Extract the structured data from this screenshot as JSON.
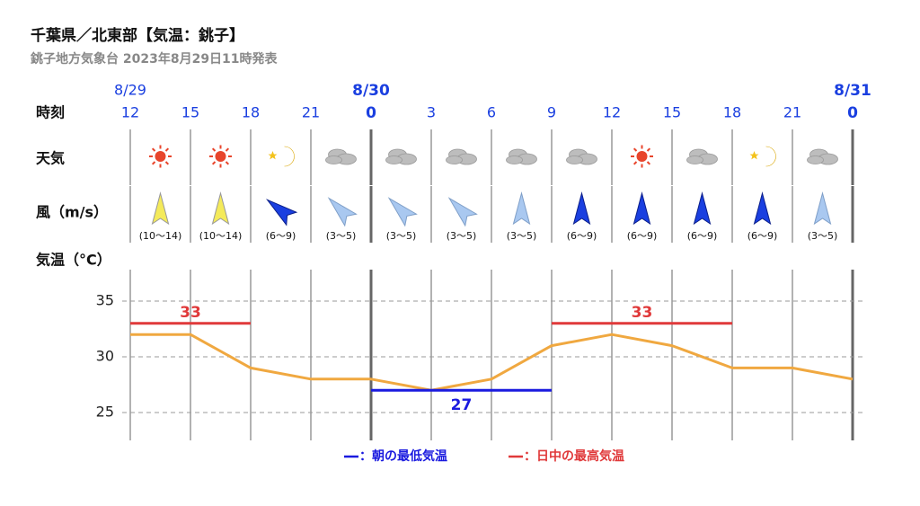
{
  "header": {
    "title": "千葉県／北東部【気温：銚子】",
    "subtitle": "銚子地方気象台 2023年8月29日11時発表"
  },
  "rows": {
    "time": "時刻",
    "weather": "天気",
    "wind": "風（m/s）",
    "temp": "気温（°C）"
  },
  "dates": [
    "8/29",
    null,
    null,
    null,
    "8/30",
    null,
    null,
    null,
    null,
    null,
    null,
    null,
    "8/31"
  ],
  "wind": [
    "(10〜14)",
    "(10〜14)",
    "(6〜9)",
    "(3〜5)",
    "(3〜5)",
    "(3〜5)",
    "(3〜5)",
    "(6〜9)",
    "(6〜9)",
    "(6〜9)",
    "(6〜9)",
    "(3〜5)"
  ],
  "chart_data": {
    "type": "line",
    "categories": [
      "12",
      "15",
      "18",
      "21",
      "0",
      "3",
      "6",
      "9",
      "12",
      "15",
      "18",
      "21",
      "0"
    ],
    "series": [
      {
        "name": "気温",
        "color": "#f0a840",
        "values": [
          32,
          32,
          29,
          28,
          28,
          27,
          28,
          31,
          32,
          31,
          29,
          29,
          28
        ]
      },
      {
        "name": "：日中の最高気温",
        "color": "#e0393a",
        "values": [
          33,
          33,
          33,
          null,
          null,
          null,
          null,
          33,
          33,
          33,
          33,
          null,
          null
        ]
      },
      {
        "name": "：朝の最低気温",
        "color": "#1a1adf",
        "values": [
          null,
          null,
          null,
          null,
          27,
          27,
          27,
          27,
          null,
          null,
          null,
          null,
          null
        ]
      }
    ],
    "ylim": [
      22.5,
      37.5
    ],
    "yticks": [
      25,
      30,
      35
    ],
    "grid": true
  }
}
